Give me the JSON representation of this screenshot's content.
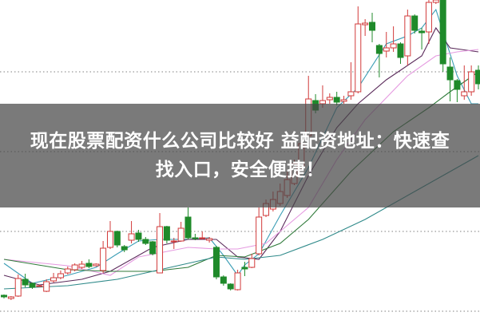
{
  "banner": {
    "line1": "现在股票配资什么公司比较好 益配资地址：快速查",
    "line2": "找入口，安全便捷！"
  },
  "chart_data": {
    "type": "candlestick",
    "ylim": [
      0,
      400
    ],
    "grid": {
      "horizontal_dotted": [
        10,
        110,
        210,
        310
      ]
    },
    "up_color": "#d23a3a",
    "down_color": "#1f8a2a",
    "candles_ohlc": [
      [
        30,
        31,
        26,
        28
      ],
      [
        26,
        29,
        24,
        28
      ],
      [
        29,
        56,
        28,
        51
      ],
      [
        50,
        57,
        40,
        43
      ],
      [
        45,
        46,
        38,
        40
      ],
      [
        42,
        43,
        41,
        42
      ],
      [
        35,
        50,
        34,
        47
      ],
      [
        48,
        58,
        46,
        52
      ],
      [
        52,
        61,
        50,
        57
      ],
      [
        58,
        66,
        56,
        63
      ],
      [
        62,
        70,
        60,
        68
      ],
      [
        65,
        73,
        63,
        69
      ],
      [
        70,
        75,
        64,
        66
      ],
      [
        67,
        70,
        66,
        69
      ],
      [
        61,
        98,
        58,
        89
      ],
      [
        90,
        123,
        88,
        110
      ],
      [
        110,
        111,
        90,
        93
      ],
      [
        91,
        93,
        84,
        87
      ],
      [
        99,
        123,
        95,
        107
      ],
      [
        108,
        112,
        97,
        100
      ],
      [
        100,
        103,
        93,
        95
      ],
      [
        97,
        98,
        80,
        82
      ],
      [
        58,
        133,
        58,
        116
      ],
      [
        116,
        117,
        95,
        99
      ],
      [
        98,
        102,
        88,
        98
      ],
      [
        98,
        122,
        97,
        114
      ],
      [
        128,
        140,
        100,
        102
      ],
      [
        102,
        107,
        99,
        101
      ],
      [
        102,
        110,
        100,
        102
      ],
      [
        99,
        103,
        96,
        101
      ],
      [
        90,
        92,
        50,
        53
      ],
      [
        53,
        55,
        42,
        45
      ],
      [
        44,
        45,
        36,
        38
      ],
      [
        37,
        62,
        36,
        58
      ],
      [
        65,
        72,
        54,
        63
      ],
      [
        65,
        82,
        64,
        76
      ],
      [
        82,
        140,
        80,
        128
      ],
      [
        130,
        150,
        128,
        145
      ],
      [
        138,
        160,
        135,
        150
      ],
      [
        145,
        170,
        142,
        160
      ],
      [
        155,
        185,
        152,
        175
      ],
      [
        170,
        200,
        168,
        195
      ],
      [
        190,
        225,
        188,
        220
      ],
      [
        230,
        305,
        228,
        276
      ],
      [
        274,
        282,
        258,
        262
      ],
      [
        270,
        293,
        265,
        274
      ],
      [
        275,
        283,
        270,
        278
      ],
      [
        278,
        285,
        268,
        272
      ],
      [
        273,
        280,
        270,
        275
      ],
      [
        280,
        322,
        275,
        285
      ],
      [
        285,
        392,
        283,
        370
      ],
      [
        369,
        376,
        355,
        371
      ],
      [
        372,
        384,
        347,
        362
      ],
      [
        343,
        345,
        303,
        333
      ],
      [
        336,
        360,
        328,
        340
      ],
      [
        340,
        367,
        335,
        345
      ],
      [
        345,
        347,
        320,
        328
      ],
      [
        330,
        388,
        318,
        380
      ],
      [
        380,
        382,
        358,
        362
      ],
      [
        361,
        365,
        338,
        359
      ],
      [
        360,
        400,
        345,
        397
      ],
      [
        397,
        400,
        395,
        400
      ],
      [
        400,
        400,
        310,
        320
      ],
      [
        316,
        328,
        273,
        300
      ],
      [
        299,
        301,
        272,
        288
      ],
      [
        280,
        318,
        275,
        285
      ],
      [
        285,
        318,
        280,
        310
      ],
      [
        312,
        318,
        288,
        295
      ]
    ],
    "moving_averages": [
      {
        "color": "#3a9db5",
        "points": [
          [
            1,
            70
          ],
          [
            5,
            45
          ],
          [
            10,
            55
          ],
          [
            14,
            65
          ],
          [
            17,
            82
          ],
          [
            20,
            98
          ],
          [
            23,
            100
          ],
          [
            27,
            100
          ],
          [
            30,
            102
          ],
          [
            32,
            80
          ],
          [
            34,
            55
          ],
          [
            35,
            68
          ],
          [
            37,
            82
          ],
          [
            40,
            130
          ],
          [
            44,
            190
          ],
          [
            48,
            265
          ],
          [
            51,
            290
          ],
          [
            55,
            345
          ],
          [
            58,
            355
          ],
          [
            60,
            365
          ],
          [
            62,
            388
          ],
          [
            63,
            360
          ],
          [
            65,
            305
          ],
          [
            67,
            270
          ],
          [
            68,
            270
          ]
        ]
      },
      {
        "color": "#5a2a5a",
        "points": [
          [
            1,
            55
          ],
          [
            6,
            43
          ],
          [
            12,
            50
          ],
          [
            16,
            60
          ],
          [
            22,
            90
          ],
          [
            27,
            100
          ],
          [
            31,
            100
          ],
          [
            34,
            78
          ],
          [
            37,
            75
          ],
          [
            40,
            110
          ],
          [
            44,
            180
          ],
          [
            48,
            240
          ],
          [
            51,
            270
          ],
          [
            55,
            300
          ],
          [
            60,
            330
          ],
          [
            62,
            365
          ],
          [
            64,
            340
          ],
          [
            68,
            335
          ]
        ]
      },
      {
        "color": "#e59ae0",
        "points": [
          [
            1,
            75
          ],
          [
            10,
            67
          ],
          [
            16,
            55
          ],
          [
            20,
            78
          ],
          [
            27,
            90
          ],
          [
            31,
            88
          ],
          [
            34,
            88
          ],
          [
            38,
            95
          ],
          [
            44,
            140
          ],
          [
            48,
            200
          ],
          [
            52,
            250
          ],
          [
            58,
            305
          ],
          [
            62,
            330
          ],
          [
            65,
            335
          ],
          [
            68,
            338
          ]
        ]
      },
      {
        "color": "#2f7a3a",
        "points": [
          [
            1,
            75
          ],
          [
            10,
            62
          ],
          [
            16,
            60
          ],
          [
            22,
            60
          ],
          [
            27,
            65
          ],
          [
            31,
            80
          ],
          [
            35,
            78
          ],
          [
            40,
            95
          ],
          [
            44,
            125
          ],
          [
            50,
            185
          ],
          [
            56,
            235
          ],
          [
            61,
            265
          ],
          [
            64,
            285
          ],
          [
            68,
            310
          ]
        ]
      },
      {
        "color": "#2f8a8a",
        "points": [
          [
            1,
            38
          ],
          [
            10,
            42
          ],
          [
            17,
            50
          ],
          [
            23,
            62
          ],
          [
            28,
            72
          ],
          [
            31,
            78
          ],
          [
            35,
            75
          ],
          [
            40,
            80
          ],
          [
            46,
            100
          ],
          [
            52,
            125
          ],
          [
            58,
            155
          ],
          [
            64,
            185
          ],
          [
            68,
            205
          ]
        ]
      }
    ]
  }
}
